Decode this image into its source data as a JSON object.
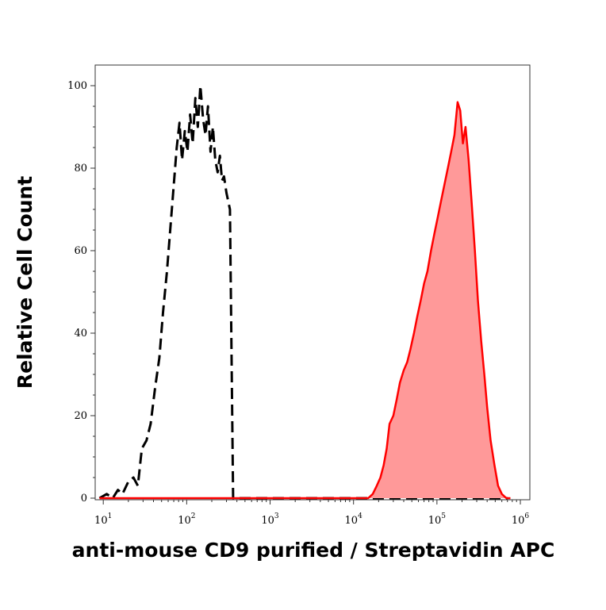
{
  "chart_data": {
    "type": "area",
    "title": "",
    "xlabel": "anti-mouse CD9 purified / Streptavidin APC",
    "ylabel": "Relative Cell Count",
    "xscale": "log",
    "xlim": [
      8,
      1300000
    ],
    "ylim": [
      0,
      105
    ],
    "x_ticks": [
      {
        "base": "10",
        "exp": "1",
        "value": 10
      },
      {
        "base": "10",
        "exp": "2",
        "value": 100
      },
      {
        "base": "10",
        "exp": "3",
        "value": 1000
      },
      {
        "base": "10",
        "exp": "4",
        "value": 10000
      },
      {
        "base": "10",
        "exp": "5",
        "value": 100000
      },
      {
        "base": "10",
        "exp": "6",
        "value": 1000000
      }
    ],
    "y_ticks": [
      "0",
      "20",
      "40",
      "60",
      "80",
      "100"
    ],
    "grid": false,
    "series": [
      {
        "style": "dashed",
        "color": "#000000",
        "fill": "none",
        "x": [
          9,
          11,
          13,
          15,
          17,
          20,
          23,
          26,
          29,
          33,
          37,
          42,
          47,
          52,
          58,
          64,
          70,
          76,
          82,
          88,
          95,
          102,
          110,
          118,
          127,
          136,
          146,
          157,
          168,
          180,
          193,
          206,
          220,
          235,
          250,
          265,
          280,
          300,
          330,
          360,
          400,
          1000,
          10000,
          100000,
          700000
        ],
        "y": [
          0,
          1,
          0,
          2,
          1,
          4,
          5,
          3,
          12,
          14,
          18,
          27,
          34,
          45,
          55,
          66,
          76,
          85,
          91,
          82,
          89,
          84,
          93,
          86,
          97,
          90,
          100,
          92,
          88,
          95,
          84,
          90,
          82,
          79,
          83,
          77,
          78,
          74,
          70,
          0,
          0,
          0,
          0,
          0,
          0
        ]
      },
      {
        "style": "solid",
        "color": "#ff0000",
        "fill": "#ff9999",
        "x": [
          9,
          1000,
          10000,
          15000,
          17000,
          19000,
          21000,
          23000,
          25000,
          27000,
          30000,
          33000,
          36000,
          40000,
          44000,
          48000,
          53000,
          58000,
          64000,
          70000,
          77000,
          85000,
          93000,
          102000,
          112000,
          123000,
          135000,
          148000,
          162000,
          177000,
          190000,
          205000,
          220000,
          240000,
          260000,
          285000,
          310000,
          340000,
          370000,
          400000,
          440000,
          490000,
          540000,
          600000,
          680000,
          760000
        ],
        "y": [
          0,
          0,
          0,
          0,
          1,
          3,
          5,
          8,
          12,
          18,
          20,
          24,
          28,
          31,
          33,
          36,
          40,
          44,
          48,
          52,
          55,
          60,
          64,
          68,
          72,
          76,
          80,
          84,
          88,
          96,
          94,
          86,
          90,
          82,
          72,
          60,
          48,
          38,
          30,
          22,
          14,
          8,
          3,
          1,
          0,
          0
        ]
      }
    ]
  }
}
